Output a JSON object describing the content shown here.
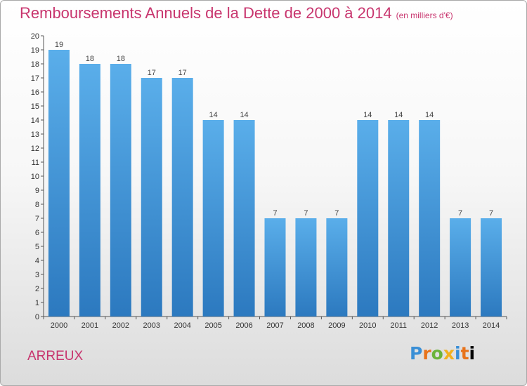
{
  "title": "Remboursements Annuels de la Dette de 2000 à 2014",
  "unit_note": "(en milliers d'€)",
  "commune": "ARREUX",
  "logo": {
    "text": "Proxiti",
    "colors": [
      "#3a8fd6",
      "#e8731b",
      "#6bb33a",
      "#f2b01e",
      "#3a8fd6",
      "#e8731b"
    ]
  },
  "chart_data": {
    "type": "bar",
    "title": "Remboursements Annuels de la Dette de 2000 à 2014",
    "xlabel": "",
    "ylabel": "",
    "categories": [
      "2000",
      "2001",
      "2002",
      "2003",
      "2004",
      "2005",
      "2006",
      "2007",
      "2008",
      "2009",
      "2010",
      "2011",
      "2012",
      "2013",
      "2014"
    ],
    "values": [
      19,
      18,
      18,
      17,
      17,
      14,
      14,
      7,
      7,
      7,
      14,
      14,
      14,
      7,
      7
    ],
    "ylim": [
      0,
      20
    ],
    "yticks": [
      0,
      1,
      2,
      3,
      4,
      5,
      6,
      7,
      8,
      9,
      10,
      11,
      12,
      13,
      14,
      15,
      16,
      17,
      18,
      19,
      20
    ],
    "grid": false,
    "bar_color_top": "#5aaeea",
    "bar_color_bottom": "#2c79bf"
  }
}
